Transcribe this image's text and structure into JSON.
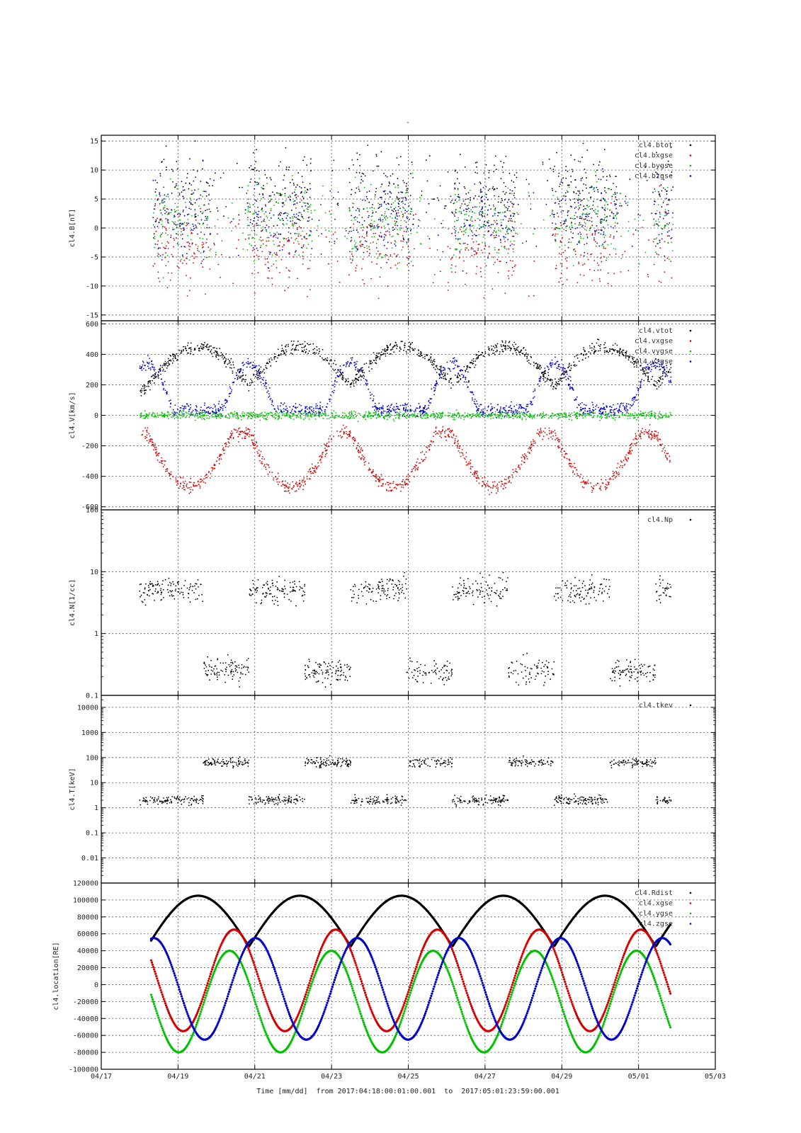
{
  "figure": {
    "title_mark": "-",
    "xlabel": "Time [mm/dd]  from 2017:04:18:00:01:00.001  to  2017:05:01:23:59:00.001",
    "x_ticks": [
      "04/17",
      "04/19",
      "04/21",
      "04/23",
      "04/25",
      "04/27",
      "04/29",
      "05/01",
      "05/03"
    ]
  },
  "chart_data": [
    {
      "type": "scatter",
      "ylabel": "cl4.B[nT]",
      "ylim": [
        -16,
        16
      ],
      "yscale": "linear",
      "ytick_labels": [
        "15",
        "10",
        "5",
        "0",
        "-5",
        "-10",
        "-15"
      ],
      "xlim": [
        "2017-04-17",
        "2017-05-03"
      ],
      "grid": true,
      "legend_position": "top-right",
      "series": [
        {
          "name": "cl4.btot",
          "color": "#000000"
        },
        {
          "name": "cl4.bxgse",
          "color": "#d40000"
        },
        {
          "name": "cl4.bygse",
          "color": "#00c000"
        },
        {
          "name": "cl4.bzgse",
          "color": "#0000c8"
        }
      ]
    },
    {
      "type": "scatter",
      "ylabel": "cl4.V[km/s]",
      "ylim": [
        -620,
        620
      ],
      "yscale": "linear",
      "ytick_labels": [
        "600",
        "400",
        "200",
        "0",
        "-200",
        "-400",
        "-600"
      ],
      "xlim": [
        "2017-04-17",
        "2017-05-03"
      ],
      "grid": true,
      "legend_position": "top-right",
      "series": [
        {
          "name": "cl4.vtot",
          "color": "#000000"
        },
        {
          "name": "cl4.vxgse",
          "color": "#d40000"
        },
        {
          "name": "cl4.vygse",
          "color": "#00c000"
        },
        {
          "name": "cl4.vzgse",
          "color": "#0000c8"
        }
      ]
    },
    {
      "type": "scatter",
      "ylabel": "cl4.N[1/cc]",
      "ylim": [
        0.1,
        100
      ],
      "yscale": "log",
      "ytick_labels": [
        "100",
        "10",
        "1",
        "0.1"
      ],
      "xlim": [
        "2017-04-17",
        "2017-05-03"
      ],
      "grid": true,
      "legend_position": "top-right",
      "series": [
        {
          "name": "cl4.Np",
          "color": "#000000"
        }
      ]
    },
    {
      "type": "scatter",
      "ylabel": "cl4.T[keV]",
      "ylim": [
        0.001,
        30000
      ],
      "yscale": "log",
      "ytick_labels": [
        "10000",
        "1000",
        "100",
        "10",
        "1",
        "0.1",
        "0.01"
      ],
      "xlim": [
        "2017-04-17",
        "2017-05-03"
      ],
      "grid": true,
      "legend_position": "top-right",
      "series": [
        {
          "name": "cl4.tkev",
          "color": "#000000"
        }
      ]
    },
    {
      "type": "scatter",
      "ylabel": "cl4.location[RE]",
      "ylim": [
        -100000,
        120000
      ],
      "yscale": "linear",
      "ytick_labels": [
        "120000",
        "100000",
        "80000",
        "60000",
        "40000",
        "20000",
        "0",
        "-20000",
        "-40000",
        "-60000",
        "-80000",
        "-100000"
      ],
      "xlim": [
        "2017-04-17",
        "2017-05-03"
      ],
      "grid": true,
      "legend_position": "top-right",
      "series": [
        {
          "name": "cl4.Rdist",
          "color": "#000000"
        },
        {
          "name": "cl4.xgse",
          "color": "#d40000"
        },
        {
          "name": "cl4.ygse",
          "color": "#00c000"
        },
        {
          "name": "cl4.zgse",
          "color": "#0000c8"
        }
      ]
    }
  ]
}
